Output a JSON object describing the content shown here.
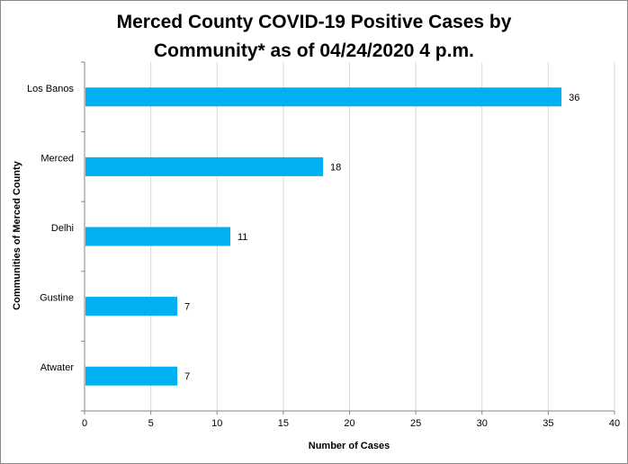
{
  "chart_data": {
    "type": "bar",
    "orientation": "horizontal",
    "title_lines": [
      "Merced County COVID-19 Positive Cases by",
      "Community* as of 04/24/2020  4 p.m."
    ],
    "xlabel": "Number of Cases",
    "ylabel": "Communities of Merced County",
    "categories": [
      "Los Banos",
      "Merced",
      "Delhi",
      "Gustine",
      "Atwater"
    ],
    "values": [
      36,
      18,
      11,
      7,
      7
    ],
    "data_labels": [
      "36",
      "18",
      "11",
      "7",
      "7"
    ],
    "xlim": [
      0,
      40
    ],
    "xticks": [
      0,
      5,
      10,
      15,
      20,
      25,
      30,
      35,
      40
    ],
    "xtick_labels": [
      "0",
      "5",
      "10",
      "15",
      "20",
      "25",
      "30",
      "35",
      "40"
    ],
    "grid": "vertical",
    "legend": "none",
    "bar_color": "#00B0F0",
    "grid_color": "#D9D9D9",
    "axis_color": "#868686"
  }
}
